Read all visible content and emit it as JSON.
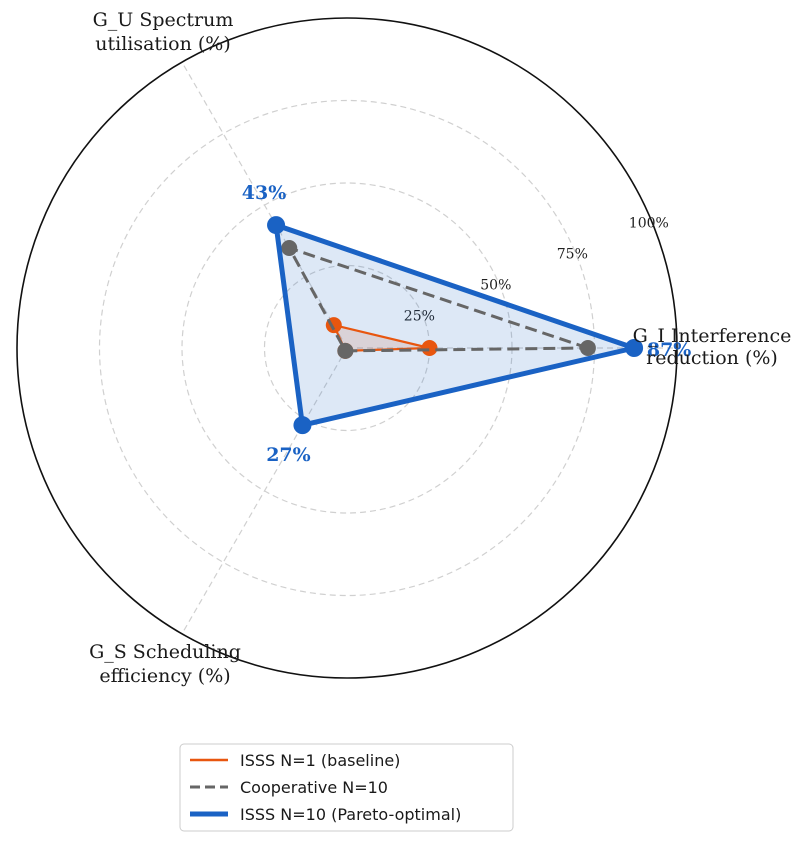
{
  "chart_data": {
    "type": "radar",
    "axes": [
      {
        "name": "G_I Interference reduction (%)",
        "lines": [
          "G_I Interference",
          "reduction (%)"
        ]
      },
      {
        "name": "G_U Spectrum utilisation (%)",
        "lines": [
          "G_U Spectrum",
          "utilisation (%)"
        ]
      },
      {
        "name": "G_S Scheduling efficiency (%)",
        "lines": [
          "G_S Scheduling",
          "efficiency (%)"
        ]
      }
    ],
    "rlim": [
      0,
      100
    ],
    "rticks": [
      25,
      50,
      75,
      100
    ],
    "rtick_labels": [
      "25%",
      "50%",
      "75%",
      "100%"
    ],
    "grid": true,
    "legend_position": "bottom",
    "series": [
      {
        "name": "ISSS N=1 (baseline)",
        "values": [
          25,
          8,
          1
        ],
        "color": "#e8560f",
        "linestyle": "solid",
        "fill": true
      },
      {
        "name": "Cooperative N=10",
        "values": [
          73,
          35,
          1
        ],
        "color": "#666666",
        "linestyle": "dashed",
        "fill": false
      },
      {
        "name": "ISSS N=10 (Pareto-optimal)",
        "values": [
          87,
          43,
          27
        ],
        "color": "#1a62c4",
        "linestyle": "solid",
        "fill": true,
        "labels": [
          "87%",
          "43%",
          "27%"
        ]
      }
    ]
  }
}
